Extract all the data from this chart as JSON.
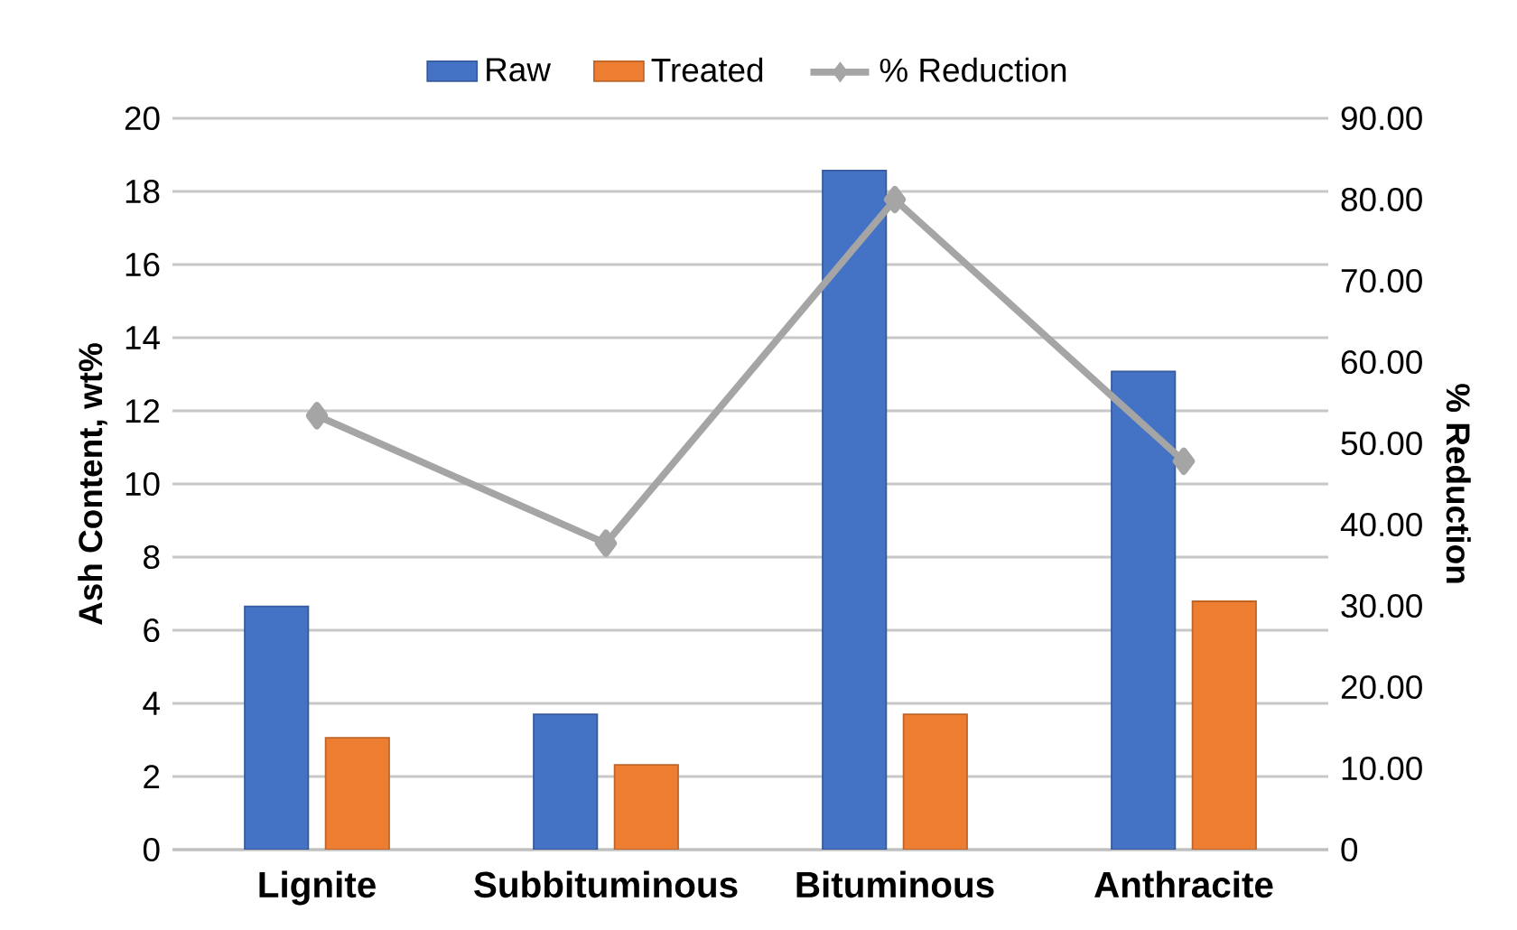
{
  "chart_data": {
    "type": "bar",
    "categories": [
      "Lignite",
      "Subbituminous",
      "Bituminous",
      "Anthracite"
    ],
    "series": [
      {
        "name": "Raw",
        "color": "#4472c4",
        "values": [
          6.65,
          3.7,
          18.57,
          13.08
        ]
      },
      {
        "name": "Treated",
        "color": "#ed7d31",
        "values": [
          3.06,
          2.32,
          3.7,
          6.79
        ]
      },
      {
        "name": "% Reduction",
        "type": "line",
        "axis": "y2",
        "color": "#a5a5a5",
        "marker": "diamond",
        "values": [
          53.4,
          37.7,
          80.0,
          47.8
        ]
      }
    ],
    "ylabel": "Ash Content, wt%",
    "y2label": "% Reduction",
    "ylim": [
      0,
      20
    ],
    "yticks": [
      0,
      2,
      4,
      6,
      8,
      10,
      12,
      14,
      16,
      18,
      20
    ],
    "y2lim": [
      0,
      90
    ],
    "y2ticks": [
      {
        "value": 0,
        "label": "0"
      },
      {
        "value": 10,
        "label": "10.00"
      },
      {
        "value": 20,
        "label": "20.00"
      },
      {
        "value": 30,
        "label": "30.00"
      },
      {
        "value": 40,
        "label": "40.00"
      },
      {
        "value": 50,
        "label": "50.00"
      },
      {
        "value": 60,
        "label": "60.00"
      },
      {
        "value": 70,
        "label": "70.00"
      },
      {
        "value": 80,
        "label": "80.00"
      },
      {
        "value": 90,
        "label": "90.00"
      }
    ],
    "grid": "y",
    "legend": "top"
  }
}
